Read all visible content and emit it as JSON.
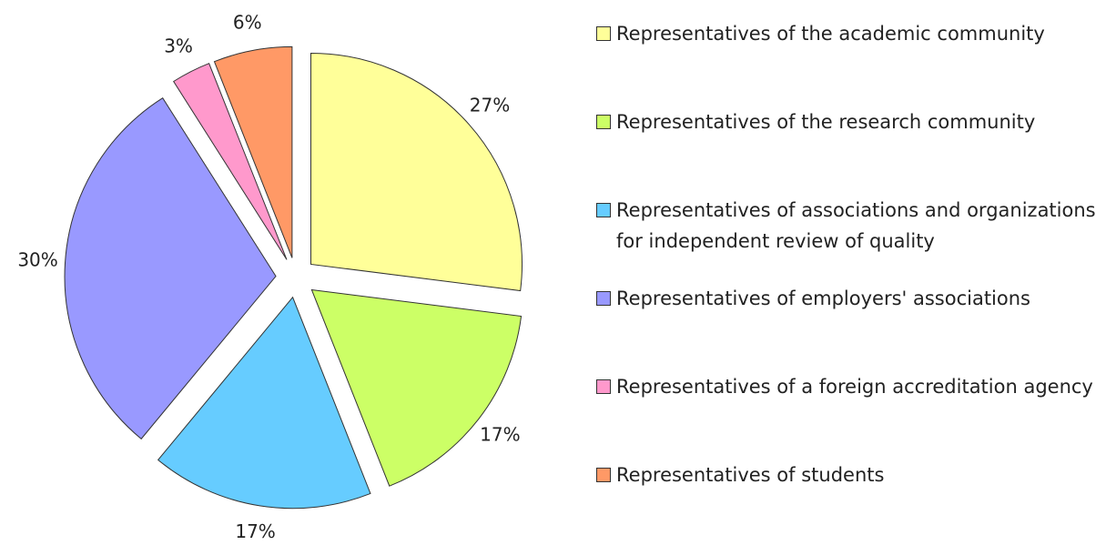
{
  "chart_data": {
    "type": "pie",
    "categories": [
      "Representatives of the academic community",
      "Representatives of the research community",
      "Representatives of associations and organizations for independent review of quality",
      "Representatives of employers' associations",
      "Representatives of a foreign accreditation agency",
      "Representatives of students"
    ],
    "values": [
      27,
      17,
      17,
      30,
      3,
      6
    ],
    "value_labels": [
      "27%",
      "17%",
      "17%",
      "30%",
      "3%",
      "6%"
    ],
    "colors": [
      "#ffff99",
      "#ccff66",
      "#66ccff",
      "#9999ff",
      "#ff99cc",
      "#ff9966"
    ],
    "legend": "right"
  }
}
